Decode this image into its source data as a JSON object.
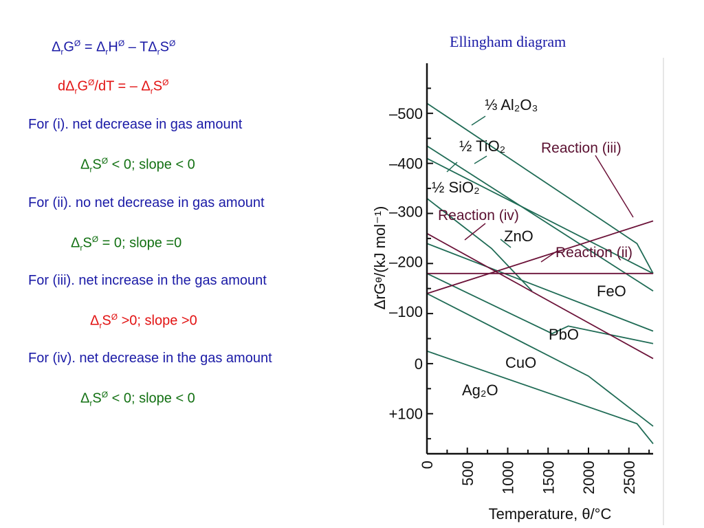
{
  "equations": {
    "gibbs": {
      "d": "Δ",
      "r1": "r",
      "g": "G",
      "deg1": "Ø",
      "eq": " = Δ",
      "r2": "r",
      "h": "H",
      "deg2": "Ø",
      "minus": " – TΔ",
      "r3": "r",
      "s": "S",
      "deg3": "Ø"
    },
    "slope": {
      "d": "dΔ",
      "r1": "r",
      "g": "G",
      "deg1": "Ø",
      "mid": "/dT = – Δ",
      "r2": "r",
      "s": "S",
      "deg2": "Ø"
    }
  },
  "cases": [
    {
      "text": "For (i). net decrease in gas amount",
      "cond_d": "Δ",
      "cond_r": "r",
      "cond_s": "S",
      "cond_deg": "Ø",
      "cond_rest": " < 0;  slope < 0"
    },
    {
      "text": "For (ii). no net decrease in gas amount",
      "cond_d": "Δ",
      "cond_r": "r",
      "cond_s": "S",
      "cond_deg": "Ø",
      "cond_rest": " = 0; slope =0"
    },
    {
      "text": "For (iii). net increase in the gas amount",
      "cond_d": "Δ",
      "cond_r": "r",
      "cond_s": "S",
      "cond_deg": "Ø",
      "cond_rest": " >0; slope >0"
    },
    {
      "text": "For (iv). net decrease in the gas amount",
      "cond_d": "Δ",
      "cond_r": "r",
      "cond_s": "S",
      "cond_deg": "Ø",
      "cond_rest": " < 0; slope < 0"
    }
  ],
  "colors": {
    "blue": "#1a1aa6",
    "red": "#e21212",
    "green": "#127012",
    "oxide_line": "#1f6b55",
    "reaction_line": "#6b1238"
  },
  "chart_data": {
    "type": "line",
    "title": "Ellingham diagram",
    "xlabel": "Temperature, θ/°C",
    "ylabel": "ΔrGᶱ/(kJ mol⁻¹)",
    "x_ticks": [
      "0",
      "500",
      "1000",
      "1500",
      "2000",
      "2500"
    ],
    "y_ticks": [
      "–500",
      "–400",
      "–300",
      "–200",
      "–100",
      "0",
      "+100"
    ],
    "xlim": [
      0,
      2800
    ],
    "ylim": [
      -600,
      180
    ],
    "y_axis_inverted": true,
    "series": [
      {
        "name": "⅓ Al₂O₃",
        "kind": "oxide",
        "x": [
          0,
          2600,
          2800
        ],
        "y": [
          -520,
          -240,
          -180
        ]
      },
      {
        "name": "½ TiO₂",
        "kind": "oxide",
        "x": [
          0,
          2800
        ],
        "y": [
          -435,
          -145
        ]
      },
      {
        "name": "½ SiO₂",
        "kind": "oxide",
        "x": [
          0,
          2800
        ],
        "y": [
          -410,
          -180
        ]
      },
      {
        "name": "ZnO",
        "kind": "oxide",
        "x": [
          0,
          800,
          1300
        ],
        "y": [
          -330,
          -230,
          -145
        ]
      },
      {
        "name": "FeO",
        "kind": "oxide",
        "x": [
          0,
          2800
        ],
        "y": [
          -240,
          -65
        ]
      },
      {
        "name": "PbO",
        "kind": "oxide",
        "x": [
          0,
          1550,
          1750,
          2800
        ],
        "y": [
          -180,
          -60,
          -75,
          -40
        ]
      },
      {
        "name": "CuO",
        "kind": "oxide",
        "x": [
          0,
          2000,
          2800
        ],
        "y": [
          -140,
          25,
          125
        ]
      },
      {
        "name": "Ag₂O",
        "kind": "oxide",
        "x": [
          0,
          2600,
          2800
        ],
        "y": [
          -25,
          120,
          160
        ]
      },
      {
        "name": "Reaction (iii)",
        "kind": "reaction",
        "x": [
          0,
          2800
        ],
        "y": [
          -140,
          -285
        ]
      },
      {
        "name": "Reaction (iv)",
        "kind": "reaction",
        "x": [
          0,
          2800
        ],
        "y": [
          -260,
          -10
        ]
      },
      {
        "name": "Reaction (ii)",
        "kind": "reaction",
        "x": [
          0,
          2800
        ],
        "y": [
          -180,
          -180
        ]
      }
    ]
  }
}
